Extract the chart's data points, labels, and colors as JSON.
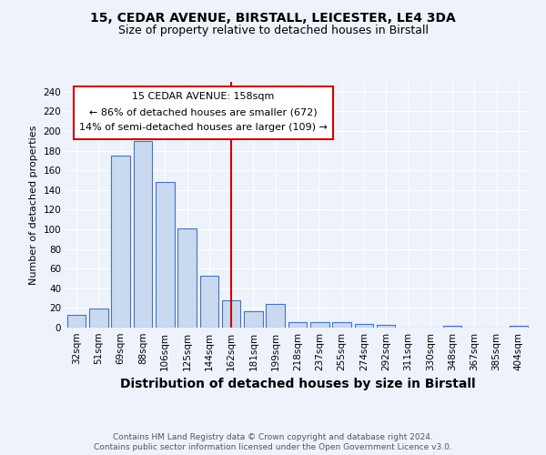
{
  "title": "15, CEDAR AVENUE, BIRSTALL, LEICESTER, LE4 3DA",
  "subtitle": "Size of property relative to detached houses in Birstall",
  "xlabel": "Distribution of detached houses by size in Birstall",
  "ylabel": "Number of detached properties",
  "categories": [
    "32sqm",
    "51sqm",
    "69sqm",
    "88sqm",
    "106sqm",
    "125sqm",
    "144sqm",
    "162sqm",
    "181sqm",
    "199sqm",
    "218sqm",
    "237sqm",
    "255sqm",
    "274sqm",
    "292sqm",
    "311sqm",
    "330sqm",
    "348sqm",
    "367sqm",
    "385sqm",
    "404sqm"
  ],
  "values": [
    13,
    19,
    175,
    190,
    148,
    101,
    53,
    28,
    17,
    24,
    6,
    6,
    6,
    4,
    3,
    0,
    0,
    2,
    0,
    0,
    2
  ],
  "bar_color": "#c9d9f0",
  "bar_edge_color": "#4472c4",
  "marker_index": 7,
  "marker_color": "#cc0000",
  "annotation_title": "15 CEDAR AVENUE: 158sqm",
  "annotation_line1": "← 86% of detached houses are smaller (672)",
  "annotation_line2": "14% of semi-detached houses are larger (109) →",
  "footnote1": "Contains HM Land Registry data © Crown copyright and database right 2024.",
  "footnote2": "Contains public sector information licensed under the Open Government Licence v3.0.",
  "ylim": [
    0,
    250
  ],
  "yticks": [
    0,
    20,
    40,
    60,
    80,
    100,
    120,
    140,
    160,
    180,
    200,
    220,
    240
  ],
  "title_fontsize": 10,
  "subtitle_fontsize": 9,
  "xlabel_fontsize": 10,
  "ylabel_fontsize": 8,
  "tick_fontsize": 7.5,
  "annotation_fontsize": 8,
  "footnote_fontsize": 6.5,
  "bg_color": "#eef2fb",
  "plot_bg_color": "#eef2fb"
}
